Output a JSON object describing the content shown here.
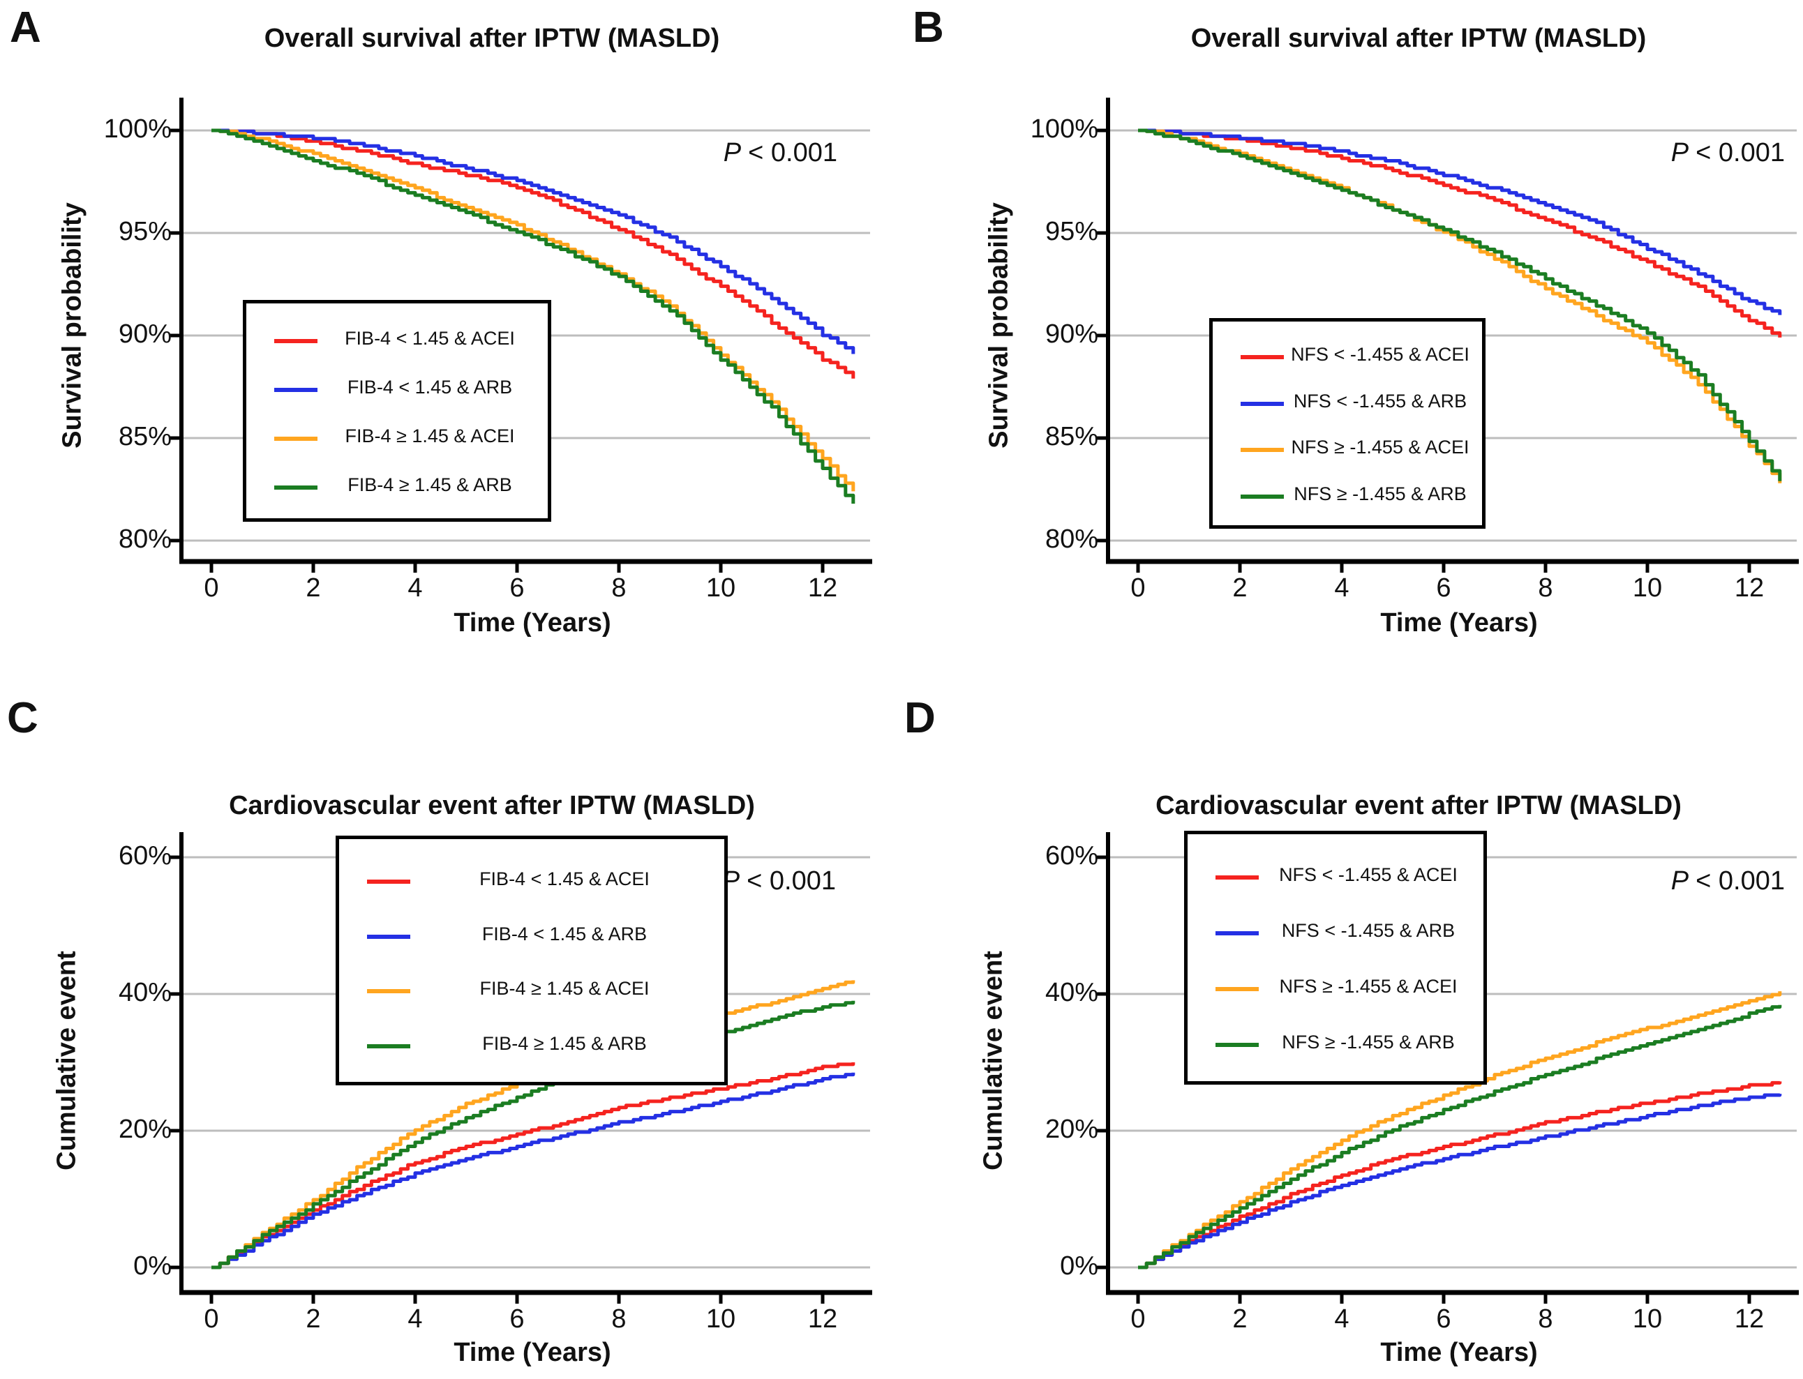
{
  "figure": {
    "background": "#FFFFFF"
  },
  "colors": {
    "red": "#F5231F",
    "blue": "#2430E4",
    "orange": "#FFA51F",
    "green": "#1B7D22",
    "grid": "#BDBDBD",
    "axis": "#000000"
  },
  "chart_data": [
    {
      "panel_letter": "A",
      "type": "line",
      "title": "Overall survival after IPTW (MASLD)",
      "xlabel": "Time (Years)",
      "ylabel": "Survival probability",
      "p_label": "P",
      "p_value": "< 0.001",
      "xlim": [
        0,
        12.6
      ],
      "ylim": [
        80,
        100
      ],
      "grid": "horizontal",
      "legend_position": "inside-left-middle",
      "xticks": {
        "values": [
          0,
          2,
          4,
          6,
          8,
          10,
          12
        ],
        "labels": [
          "0",
          "2",
          "4",
          "6",
          "8",
          "10",
          "12"
        ]
      },
      "yticks": {
        "values": [
          100,
          95,
          90,
          85,
          80
        ],
        "labels": [
          "100%",
          "95%",
          "90%",
          "85%",
          "80%"
        ]
      },
      "x": [
        0,
        0.5,
        1,
        2,
        3,
        4,
        5,
        6,
        7,
        8,
        9,
        10,
        11,
        12,
        12.6
      ],
      "series": [
        {
          "name": "FIB-4 < 1.45 & ACEI",
          "color": "red",
          "values": [
            100,
            99.9,
            99.8,
            99.4,
            98.9,
            98.3,
            97.8,
            97.2,
            96.2,
            95.1,
            93.9,
            92.3,
            90.6,
            88.8,
            87.9
          ]
        },
        {
          "name": "FIB-4 < 1.45 & ARB",
          "color": "blue",
          "values": [
            100,
            99.9,
            99.8,
            99.6,
            99.2,
            98.7,
            98.1,
            97.5,
            96.7,
            95.8,
            94.7,
            93.3,
            91.8,
            90.0,
            89.1
          ]
        },
        {
          "name": "FIB-4 ≥ 1.45 & ACEI",
          "color": "orange",
          "values": [
            100,
            99.8,
            99.5,
            98.8,
            98.0,
            97.1,
            96.2,
            95.3,
            94.2,
            92.9,
            91.4,
            89.0,
            86.7,
            83.9,
            82.4
          ]
        },
        {
          "name": "FIB-4 ≥ 1.45 & ARB",
          "color": "green",
          "values": [
            100,
            99.7,
            99.3,
            98.5,
            97.7,
            96.8,
            95.9,
            95.0,
            94.0,
            92.8,
            91.2,
            88.8,
            86.4,
            83.4,
            81.8
          ]
        }
      ]
    },
    {
      "panel_letter": "B",
      "type": "line",
      "title": "Overall survival after IPTW (MASLD)",
      "xlabel": "Time (Years)",
      "ylabel": "Survival probability",
      "p_label": "P",
      "p_value": "< 0.001",
      "xlim": [
        0,
        12.6
      ],
      "ylim": [
        80,
        100
      ],
      "grid": "horizontal",
      "legend_position": "inside-left-middle",
      "xticks": {
        "values": [
          0,
          2,
          4,
          6,
          8,
          10,
          12
        ],
        "labels": [
          "0",
          "2",
          "4",
          "6",
          "8",
          "10",
          "12"
        ]
      },
      "yticks": {
        "values": [
          100,
          95,
          90,
          85,
          80
        ],
        "labels": [
          "100%",
          "95%",
          "90%",
          "85%",
          "80%"
        ]
      },
      "x": [
        0,
        0.5,
        1,
        2,
        3,
        4,
        5,
        6,
        7,
        8,
        9,
        10,
        11,
        12,
        12.6
      ],
      "series": [
        {
          "name": "NFS < -1.455 & ACEI",
          "color": "red",
          "values": [
            100,
            99.9,
            99.8,
            99.5,
            99.1,
            98.6,
            98.0,
            97.3,
            96.5,
            95.6,
            94.6,
            93.5,
            92.3,
            90.7,
            89.9
          ]
        },
        {
          "name": "NFS < -1.455 & ARB",
          "color": "blue",
          "values": [
            100,
            99.9,
            99.8,
            99.6,
            99.3,
            98.9,
            98.4,
            97.8,
            97.1,
            96.3,
            95.4,
            94.2,
            93.0,
            91.6,
            91.0
          ]
        },
        {
          "name": "NFS ≥ -1.455 & ACEI",
          "color": "orange",
          "values": [
            100,
            99.8,
            99.5,
            98.8,
            98.0,
            97.1,
            96.1,
            95.0,
            93.7,
            92.2,
            90.9,
            89.6,
            87.6,
            84.6,
            82.8
          ]
        },
        {
          "name": "NFS ≥ -1.455 & ARB",
          "color": "green",
          "values": [
            100,
            99.7,
            99.4,
            98.7,
            97.9,
            97.0,
            96.1,
            95.1,
            94.0,
            92.7,
            91.4,
            90.1,
            88.0,
            84.8,
            82.9
          ]
        }
      ]
    },
    {
      "panel_letter": "C",
      "type": "line",
      "title": "Cardiovascular event after IPTW (MASLD)",
      "xlabel": "Time (Years)",
      "ylabel": "Cumulative event",
      "p_label": "P",
      "p_value": "< 0.001",
      "xlim": [
        0,
        12.6
      ],
      "ylim": [
        0,
        60
      ],
      "grid": "horizontal",
      "legend_position": "inside-top-left",
      "xticks": {
        "values": [
          0,
          2,
          4,
          6,
          8,
          10,
          12
        ],
        "labels": [
          "0",
          "2",
          "4",
          "6",
          "8",
          "10",
          "12"
        ]
      },
      "yticks": {
        "values": [
          60,
          40,
          20,
          0
        ],
        "labels": [
          "60%",
          "40%",
          "20%",
          "0%"
        ]
      },
      "x": [
        0,
        0.5,
        1,
        2,
        3,
        4,
        5,
        6,
        7,
        8,
        9,
        10,
        11,
        12,
        12.6
      ],
      "series": [
        {
          "name": "FIB-4 < 1.45 & ACEI",
          "color": "red",
          "values": [
            0,
            2.3,
            4.5,
            8.5,
            12.2,
            15.5,
            17.8,
            19.6,
            21.5,
            23.5,
            25.0,
            26.3,
            27.8,
            29.4,
            30.0
          ]
        },
        {
          "name": "FIB-4 < 1.45 & ARB",
          "color": "blue",
          "values": [
            0,
            2.0,
            4.0,
            7.8,
            11.0,
            13.8,
            16.0,
            17.9,
            19.6,
            21.3,
            22.8,
            24.4,
            26.0,
            27.7,
            28.5
          ]
        },
        {
          "name": "FIB-4 ≥ 1.45 & ACEI",
          "color": "orange",
          "values": [
            0,
            2.6,
            5.2,
            10.0,
            15.5,
            20.3,
            24.0,
            27.0,
            30.5,
            33.2,
            35.3,
            37.2,
            38.9,
            40.9,
            42.0
          ]
        },
        {
          "name": "FIB-4 ≥ 1.45 & ARB",
          "color": "green",
          "values": [
            0,
            2.4,
            4.8,
            9.3,
            14.0,
            18.5,
            22.0,
            25.0,
            28.0,
            30.2,
            32.3,
            34.5,
            36.5,
            38.3,
            39.0
          ]
        }
      ]
    },
    {
      "panel_letter": "D",
      "type": "line",
      "title": "Cardiovascular event after IPTW (MASLD)",
      "xlabel": "Time (Years)",
      "ylabel": "Cumulative event",
      "p_label": "P",
      "p_value": "< 0.001",
      "xlim": [
        0,
        12.6
      ],
      "ylim": [
        0,
        60
      ],
      "grid": "horizontal",
      "legend_position": "inside-top-left",
      "xticks": {
        "values": [
          0,
          2,
          4,
          6,
          8,
          10,
          12
        ],
        "labels": [
          "0",
          "2",
          "4",
          "6",
          "8",
          "10",
          "12"
        ]
      },
      "yticks": {
        "values": [
          60,
          40,
          20,
          0
        ],
        "labels": [
          "60%",
          "40%",
          "20%",
          "0%"
        ]
      },
      "x": [
        0,
        0.5,
        1,
        2,
        3,
        4,
        5,
        6,
        7,
        8,
        9,
        10,
        11,
        12,
        12.6
      ],
      "series": [
        {
          "name": "NFS < -1.455 & ACEI",
          "color": "red",
          "values": [
            0,
            2.0,
            4.0,
            7.5,
            10.8,
            13.7,
            16.0,
            17.8,
            19.5,
            21.3,
            22.8,
            24.2,
            25.5,
            26.7,
            27.2
          ]
        },
        {
          "name": "NFS < -1.455 & ARB",
          "color": "blue",
          "values": [
            0,
            1.8,
            3.6,
            6.8,
            9.7,
            12.2,
            14.3,
            16.1,
            17.7,
            19.2,
            20.8,
            22.3,
            23.8,
            25.0,
            25.4
          ]
        },
        {
          "name": "NFS ≥ -1.455 & ACEI",
          "color": "orange",
          "values": [
            0,
            2.5,
            5.0,
            9.7,
            14.5,
            18.8,
            22.3,
            25.3,
            28.2,
            30.8,
            33.0,
            35.1,
            37.0,
            39.2,
            40.4
          ]
        },
        {
          "name": "NFS ≥ -1.455 & ARB",
          "color": "green",
          "values": [
            0,
            2.3,
            4.6,
            8.8,
            13.0,
            17.0,
            20.3,
            23.2,
            25.8,
            28.4,
            30.6,
            32.8,
            34.9,
            37.2,
            38.4
          ]
        }
      ]
    }
  ]
}
